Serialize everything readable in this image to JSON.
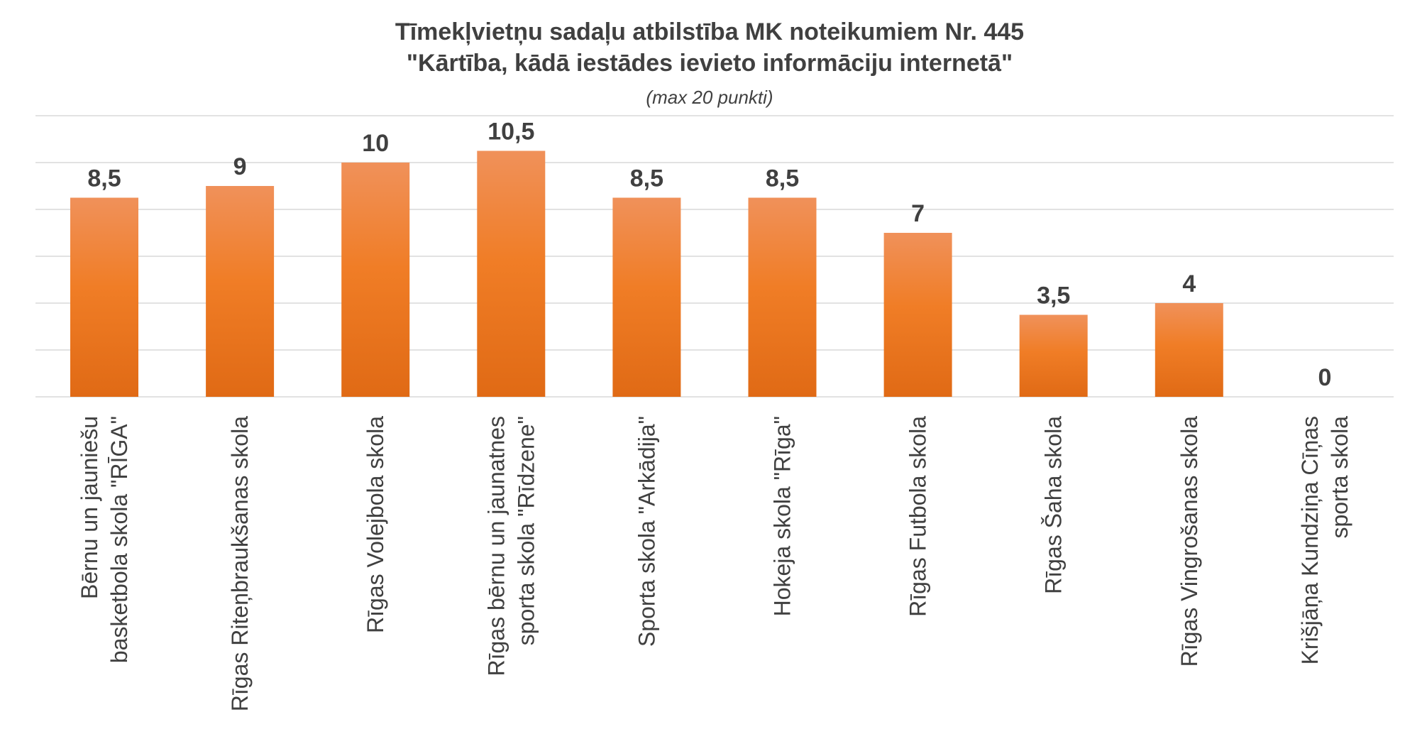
{
  "chart_data": {
    "type": "bar",
    "title": [
      "Tīmekļvietņu sadaļu atbilstība MK noteikumiem Nr. 445",
      "\"Kārtība, kādā iestādes ievieto informāciju internetā\""
    ],
    "subtitle": "(max 20 punkti)",
    "categories": [
      [
        "Bērnu un jauniešu",
        "basketbola skola \"RĪGA\""
      ],
      [
        "Rīgas Riteņbraukšanas skola"
      ],
      [
        "Rīgas Volejbola skola"
      ],
      [
        "Rīgas bērnu un jaunatnes",
        "sporta skola \"Rīdzene\""
      ],
      [
        "Sporta skola \"Arkādija\""
      ],
      [
        "Hokeja skola \"Rīga\""
      ],
      [
        "Rīgas Futbola skola"
      ],
      [
        "Rīgas Šaha skola"
      ],
      [
        "Rīgas Vingrošanas skola"
      ],
      [
        "Krišjāņa Kundziņa Cīņas",
        "sporta skola"
      ]
    ],
    "values": [
      8.5,
      9,
      10,
      10.5,
      8.5,
      8.5,
      7,
      3.5,
      4,
      0
    ],
    "value_labels": [
      "8,5",
      "9",
      "10",
      "10,5",
      "8,5",
      "8,5",
      "7",
      "3,5",
      "4",
      "0"
    ],
    "ylim": [
      0,
      12
    ],
    "gridline_step": 2,
    "grid": true,
    "legend": "none",
    "colors": {
      "bar_top": "#f0915a",
      "bar_mid": "#f07d26",
      "bar_bottom": "#e06a15",
      "text": "#404040",
      "grid": "#d9d9d9"
    }
  }
}
